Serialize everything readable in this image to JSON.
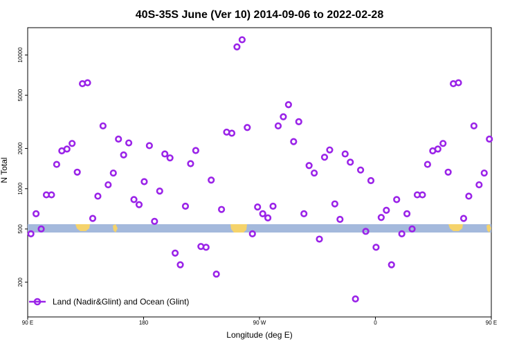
{
  "chart_data": {
    "type": "scatter",
    "title": "40S-35S June (Ver 10)   2014-09-06 to 2022-02-28",
    "xlabel": "Longitude (deg E)",
    "ylabel": "N Total",
    "y_scale": "log",
    "ylim": [
      110,
      16000
    ],
    "xlim": [
      90,
      450
    ],
    "grid": false,
    "legend_position": "bottom-left",
    "x_ticks": [
      {
        "value": 90,
        "label": "90 E"
      },
      {
        "value": 180,
        "label": "180"
      },
      {
        "value": 270,
        "label": "90 W"
      },
      {
        "value": 360,
        "label": "0"
      },
      {
        "value": 450,
        "label": "90 E"
      },
      {
        "value": 540,
        "label": "180"
      }
    ],
    "y_ticks": [
      {
        "value": 200,
        "label": "200"
      },
      {
        "value": 500,
        "label": "500"
      },
      {
        "value": 1000,
        "label": "1000"
      },
      {
        "value": 2000,
        "label": "2000"
      },
      {
        "value": 5000,
        "label": "5000"
      },
      {
        "value": 10000,
        "label": "10000"
      }
    ],
    "series": [
      {
        "name": "Land (Nadir&Glint) and Ocean (Glint)",
        "color": "#9a23e8",
        "points": [
          [
            92.5,
            460
          ],
          [
            96.5,
            650
          ],
          [
            100.5,
            500
          ],
          [
            104.5,
            900
          ],
          [
            108.5,
            900
          ],
          [
            112.5,
            1520
          ],
          [
            116.5,
            1920
          ],
          [
            120.5,
            1980
          ],
          [
            124.5,
            2180
          ],
          [
            128.5,
            1330
          ],
          [
            132.5,
            6100
          ],
          [
            136.5,
            6200
          ],
          [
            140.5,
            600
          ],
          [
            144.5,
            880
          ],
          [
            148.5,
            2950
          ],
          [
            152.5,
            1070
          ],
          [
            156.5,
            1310
          ],
          [
            160.5,
            2350
          ],
          [
            164.5,
            1790
          ],
          [
            168.5,
            2200
          ],
          [
            172.5,
            830
          ],
          [
            176.5,
            760
          ],
          [
            180.5,
            1130
          ],
          [
            184.5,
            2100
          ],
          [
            188.5,
            570
          ],
          [
            192.5,
            960
          ],
          [
            196.5,
            1820
          ],
          [
            200.5,
            1700
          ],
          [
            204.5,
            330
          ],
          [
            208.5,
            270
          ],
          [
            212.5,
            740
          ],
          [
            216.5,
            1540
          ],
          [
            220.5,
            1930
          ],
          [
            224.5,
            370
          ],
          [
            228.5,
            365
          ],
          [
            232.5,
            1160
          ],
          [
            236.5,
            230
          ],
          [
            240.5,
            700
          ],
          [
            244.5,
            2650
          ],
          [
            248.5,
            2600
          ],
          [
            252.5,
            11500
          ],
          [
            256.5,
            13000
          ],
          [
            260.5,
            2870
          ],
          [
            264.5,
            460
          ],
          [
            268.5,
            730
          ],
          [
            272.5,
            650
          ],
          [
            276.5,
            605
          ],
          [
            280.5,
            740
          ],
          [
            284.5,
            2950
          ],
          [
            288.5,
            3450
          ],
          [
            292.5,
            4250
          ],
          [
            296.5,
            2250
          ],
          [
            300.5,
            3170
          ],
          [
            304.5,
            650
          ],
          [
            308.5,
            1490
          ],
          [
            312.5,
            1310
          ],
          [
            316.5,
            420
          ],
          [
            320.5,
            1720
          ],
          [
            324.5,
            1950
          ],
          [
            328.5,
            770
          ],
          [
            332.5,
            590
          ],
          [
            336.5,
            1820
          ],
          [
            340.5,
            1580
          ],
          [
            344.5,
            150
          ],
          [
            348.5,
            1380
          ],
          [
            352.5,
            480
          ],
          [
            356.5,
            1150
          ],
          [
            360.5,
            365
          ],
          [
            364.5,
            610
          ],
          [
            368.5,
            690
          ],
          [
            372.5,
            270
          ],
          [
            376.5,
            830
          ],
          [
            380.5,
            460
          ],
          [
            384.5,
            650
          ],
          [
            388.5,
            500
          ],
          [
            392.5,
            900
          ],
          [
            396.5,
            900
          ],
          [
            400.5,
            1520
          ],
          [
            404.5,
            1920
          ],
          [
            408.5,
            1980
          ],
          [
            412.5,
            2180
          ],
          [
            416.5,
            1330
          ],
          [
            420.5,
            6100
          ],
          [
            424.5,
            6200
          ],
          [
            428.5,
            600
          ],
          [
            432.5,
            880
          ],
          [
            436.5,
            2950
          ],
          [
            440.5,
            1070
          ],
          [
            444.5,
            1310
          ],
          [
            448.5,
            2350
          ]
        ]
      }
    ]
  }
}
